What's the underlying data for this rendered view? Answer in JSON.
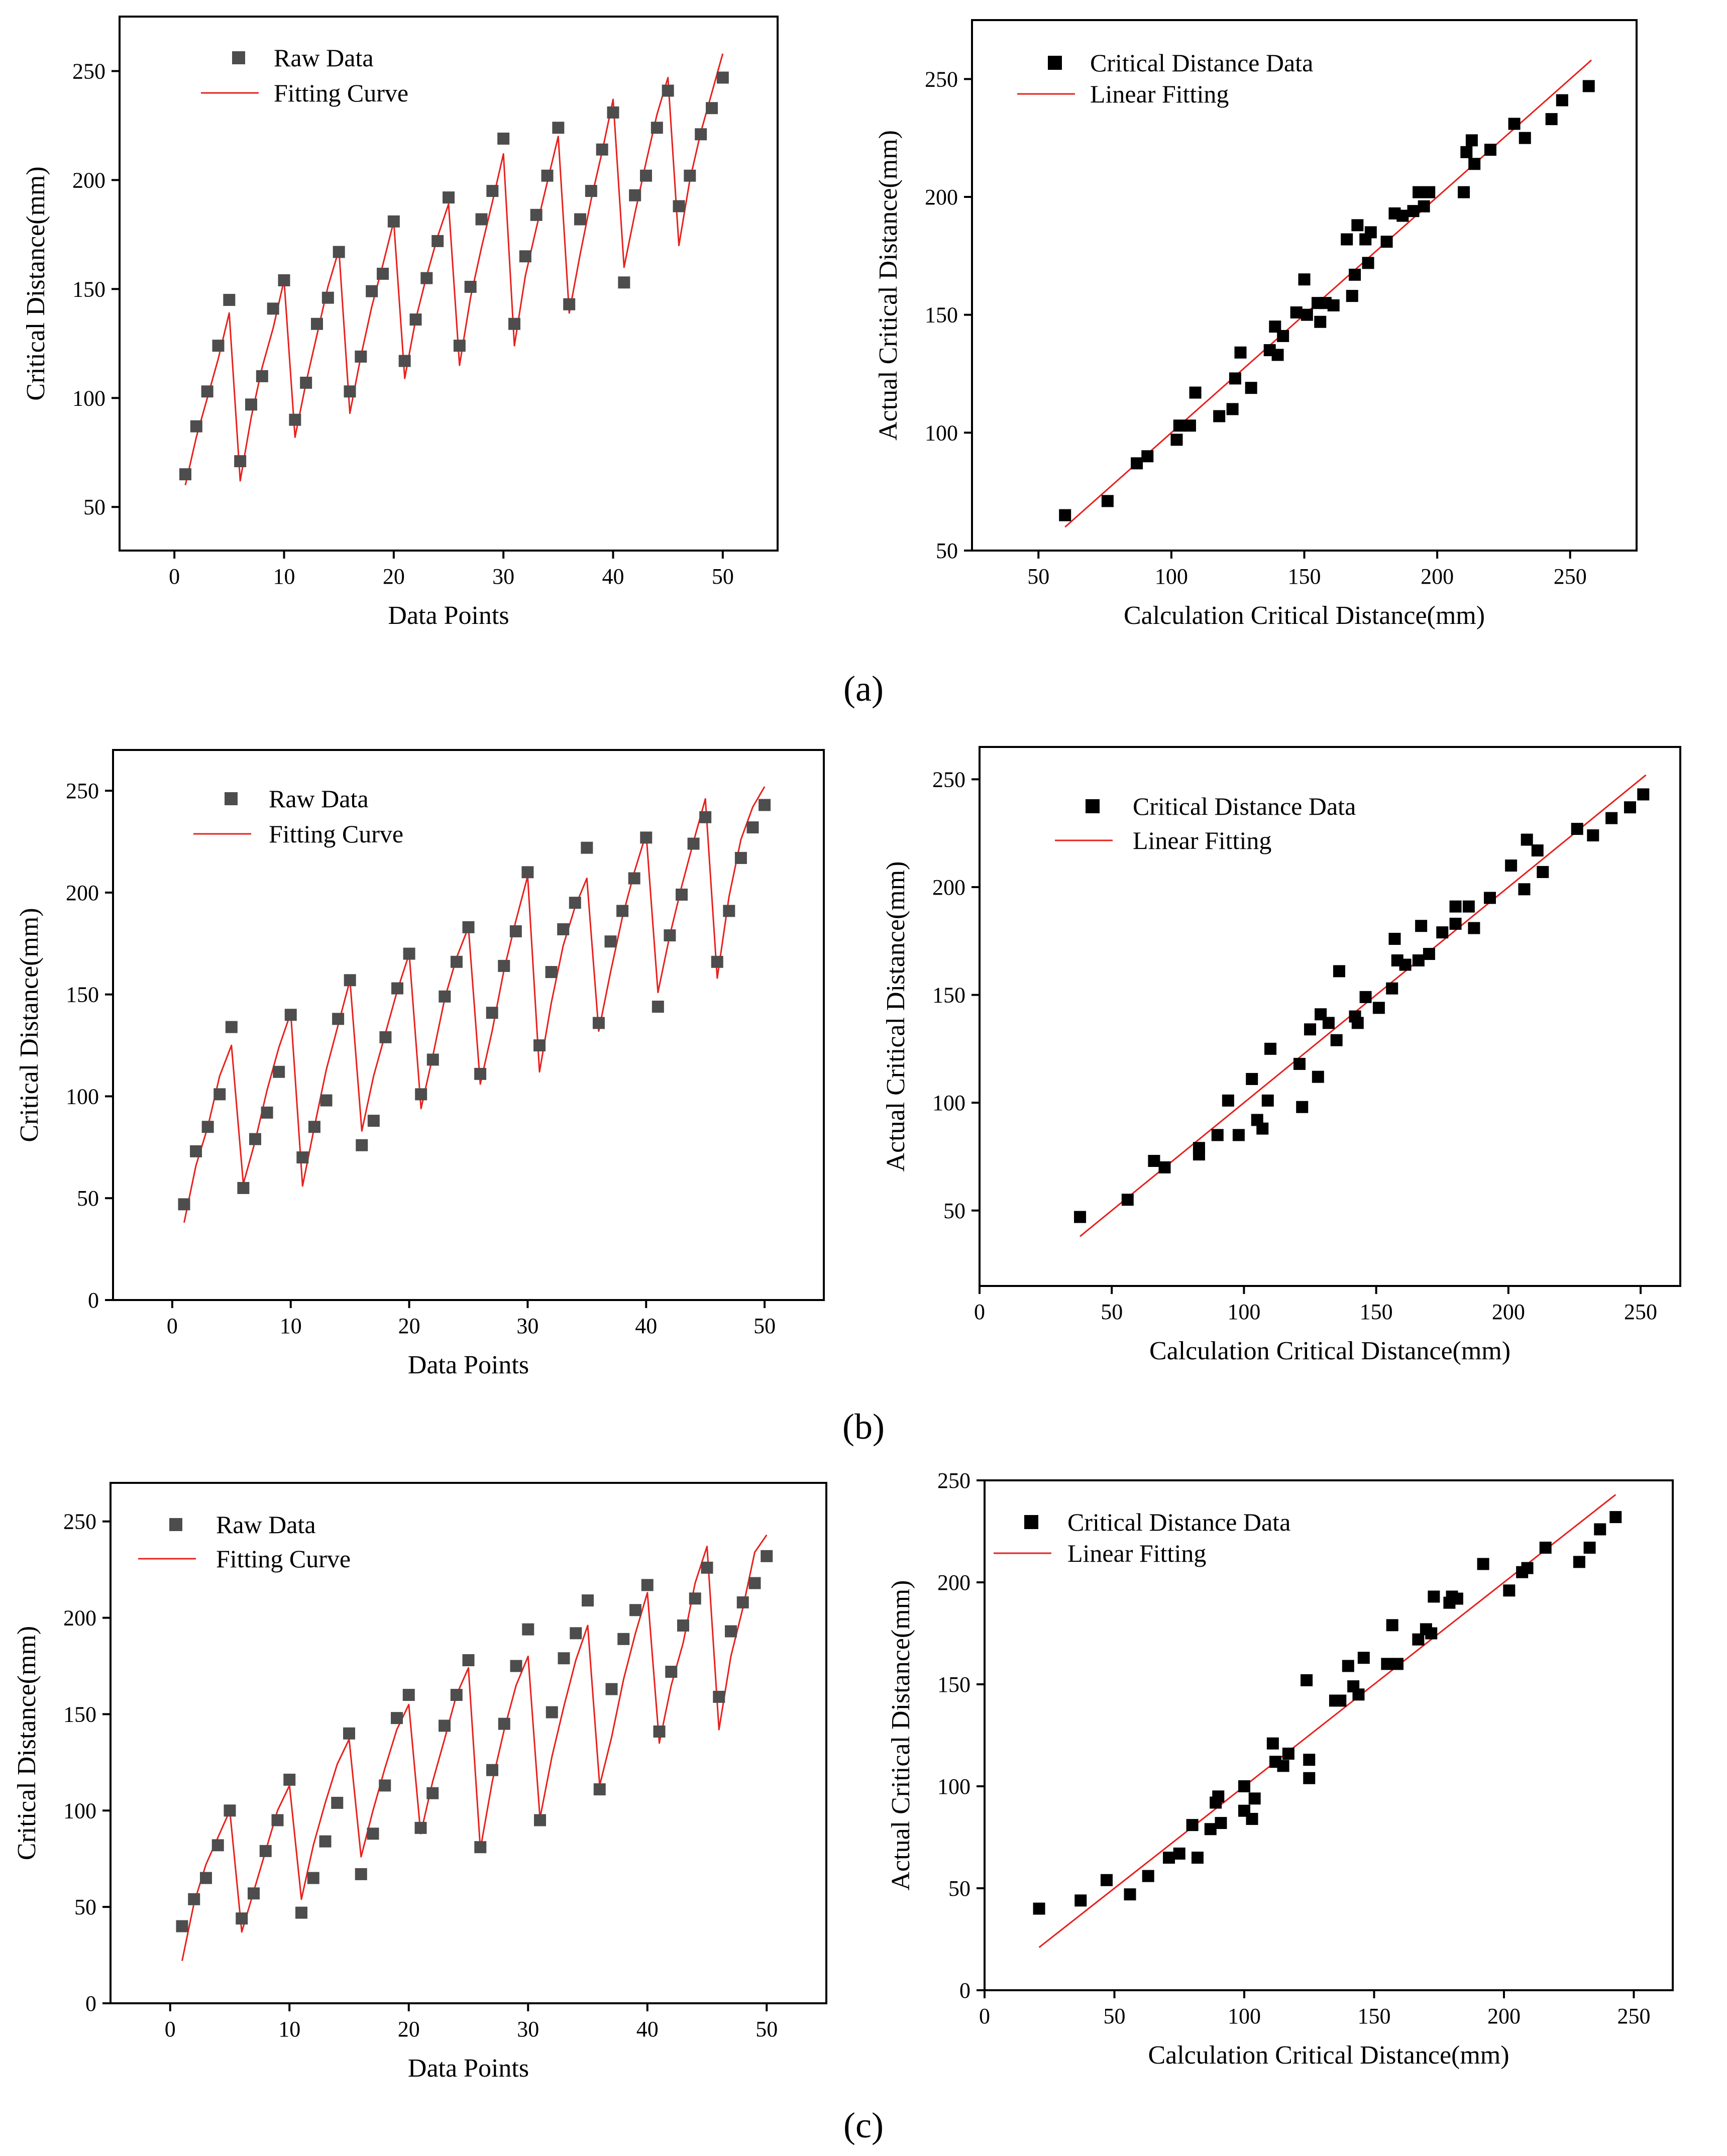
{
  "panel_labels": [
    "(a)",
    "(b)",
    "(c)"
  ],
  "colors": {
    "raw_marker": "#4d4d4d",
    "scatter_marker": "#000000",
    "fit_line": "#e8201c",
    "axis": "#000000"
  },
  "chart_data": [
    {
      "id": "a-left",
      "type": "line",
      "xlabel": "Data Points",
      "ylabel": "Critical Distance(mm)",
      "xlim": [
        -5,
        55
      ],
      "ylim": [
        30,
        275
      ],
      "xticks": [
        0,
        10,
        20,
        30,
        40,
        50
      ],
      "yticks": [
        50,
        100,
        150,
        200,
        250
      ],
      "legend": [
        "Raw Data",
        "Fitting Curve"
      ],
      "raw": [
        65,
        87,
        103,
        124,
        145,
        71,
        97,
        110,
        141,
        154,
        90,
        107,
        134,
        146,
        167,
        103,
        119,
        149,
        157,
        181,
        117,
        136,
        155,
        172,
        192,
        124,
        151,
        182,
        195,
        219,
        134,
        165,
        184,
        202,
        224,
        143,
        182,
        195,
        214,
        231,
        153,
        193,
        202,
        224,
        241,
        188,
        202,
        221,
        233,
        247
      ],
      "fit": [
        60,
        82,
        100,
        118,
        139,
        62,
        91,
        114,
        132,
        154,
        82,
        107,
        129,
        151,
        168,
        93,
        119,
        142,
        161,
        181,
        109,
        136,
        156,
        174,
        189,
        115,
        146,
        169,
        190,
        212,
        124,
        156,
        178,
        199,
        220,
        139,
        166,
        191,
        213,
        237,
        160,
        185,
        208,
        230,
        247,
        170,
        200,
        222,
        240,
        258
      ]
    },
    {
      "id": "a-right",
      "type": "scatter",
      "xlabel": "Calculation Critical Distance(mm)",
      "ylabel": "Actual Critical Distance(mm)",
      "xlim": [
        25,
        275
      ],
      "ylim": [
        50,
        275
      ],
      "xticks": [
        50,
        100,
        150,
        200,
        250
      ],
      "yticks": [
        50,
        100,
        150,
        200,
        250
      ],
      "legend": [
        "Critical Distance Data",
        "Linear Fitting"
      ],
      "points": [
        [
          60,
          65
        ],
        [
          76,
          71
        ],
        [
          87,
          87
        ],
        [
          91,
          90
        ],
        [
          102,
          97
        ],
        [
          103,
          103
        ],
        [
          107,
          103
        ],
        [
          109,
          117
        ],
        [
          118,
          107
        ],
        [
          123,
          110
        ],
        [
          124,
          123
        ],
        [
          126,
          134
        ],
        [
          130,
          119
        ],
        [
          137,
          135
        ],
        [
          139,
          145
        ],
        [
          140,
          133
        ],
        [
          142,
          141
        ],
        [
          147,
          151
        ],
        [
          150,
          165
        ],
        [
          151,
          150
        ],
        [
          155,
          155
        ],
        [
          156,
          147
        ],
        [
          158,
          155
        ],
        [
          161,
          154
        ],
        [
          166,
          182
        ],
        [
          168,
          158
        ],
        [
          169,
          167
        ],
        [
          170,
          188
        ],
        [
          173,
          182
        ],
        [
          174,
          172
        ],
        [
          175,
          185
        ],
        [
          181,
          181
        ],
        [
          184,
          193
        ],
        [
          187,
          192
        ],
        [
          191,
          194
        ],
        [
          193,
          202
        ],
        [
          195,
          196
        ],
        [
          197,
          202
        ],
        [
          210,
          202
        ],
        [
          211,
          219
        ],
        [
          213,
          224
        ],
        [
          214,
          214
        ],
        [
          220,
          220
        ],
        [
          229,
          231
        ],
        [
          233,
          225
        ],
        [
          243,
          233
        ],
        [
          247,
          241
        ],
        [
          257,
          247
        ]
      ],
      "fit_line": [
        [
          60,
          60
        ],
        [
          258,
          258
        ]
      ]
    },
    {
      "id": "b-left",
      "type": "line",
      "xlabel": "Data Points",
      "ylabel": "Critical Distance(mm)",
      "xlim": [
        -5,
        55
      ],
      "ylim": [
        0,
        270
      ],
      "xticks": [
        0,
        10,
        20,
        30,
        40,
        50
      ],
      "yticks": [
        0,
        50,
        100,
        150,
        200,
        250
      ],
      "legend": [
        "Raw Data",
        "Fitting Curve"
      ],
      "raw": [
        47,
        73,
        85,
        101,
        134,
        55,
        79,
        92,
        112,
        140,
        70,
        85,
        98,
        138,
        157,
        76,
        88,
        129,
        153,
        170,
        101,
        118,
        149,
        166,
        183,
        111,
        141,
        164,
        181,
        210,
        125,
        161,
        182,
        195,
        222,
        136,
        176,
        191,
        207,
        227,
        144,
        179,
        199,
        224,
        237,
        166,
        191,
        217,
        232,
        243
      ],
      "fit": [
        38,
        66,
        85,
        110,
        125,
        57,
        78,
        103,
        124,
        141,
        56,
        85,
        113,
        135,
        157,
        83,
        110,
        131,
        152,
        170,
        94,
        120,
        148,
        168,
        183,
        106,
        132,
        162,
        186,
        208,
        112,
        146,
        174,
        193,
        207,
        132,
        161,
        188,
        210,
        229,
        151,
        179,
        203,
        225,
        246,
        158,
        198,
        226,
        242,
        252
      ]
    },
    {
      "id": "b-right",
      "type": "scatter",
      "xlabel": "Calculation Critical Distance(mm)",
      "ylabel": "Actual Critical Distance(mm)",
      "xlim": [
        0,
        265
      ],
      "ylim": [
        15,
        265
      ],
      "xticks": [
        0,
        50,
        100,
        150,
        200,
        250
      ],
      "yticks": [
        50,
        100,
        150,
        200,
        250
      ],
      "legend": [
        "Critical Distance Data",
        "Linear Fitting"
      ],
      "points": [
        [
          38,
          47
        ],
        [
          56,
          55
        ],
        [
          66,
          73
        ],
        [
          70,
          70
        ],
        [
          83,
          79
        ],
        [
          83,
          76
        ],
        [
          90,
          85
        ],
        [
          94,
          101
        ],
        [
          98,
          85
        ],
        [
          103,
          111
        ],
        [
          105,
          92
        ],
        [
          107,
          88
        ],
        [
          109,
          101
        ],
        [
          110,
          125
        ],
        [
          121,
          118
        ],
        [
          122,
          98
        ],
        [
          125,
          134
        ],
        [
          128,
          112
        ],
        [
          129,
          141
        ],
        [
          132,
          137
        ],
        [
          135,
          129
        ],
        [
          136,
          161
        ],
        [
          142,
          140
        ],
        [
          143,
          137
        ],
        [
          146,
          149
        ],
        [
          151,
          144
        ],
        [
          156,
          153
        ],
        [
          157,
          176
        ],
        [
          158,
          166
        ],
        [
          161,
          164
        ],
        [
          166,
          166
        ],
        [
          167,
          182
        ],
        [
          170,
          169
        ],
        [
          175,
          179
        ],
        [
          180,
          183
        ],
        [
          180,
          191
        ],
        [
          185,
          191
        ],
        [
          187,
          181
        ],
        [
          193,
          195
        ],
        [
          201,
          210
        ],
        [
          206,
          199
        ],
        [
          207,
          222
        ],
        [
          211,
          217
        ],
        [
          213,
          207
        ],
        [
          226,
          227
        ],
        [
          232,
          224
        ],
        [
          239,
          232
        ],
        [
          246,
          237
        ],
        [
          251,
          243
        ]
      ],
      "fit_line": [
        [
          38,
          38
        ],
        [
          252,
          252
        ]
      ]
    },
    {
      "id": "c-left",
      "type": "line",
      "xlabel": "Data Points",
      "ylabel": "Critical Distance(mm)",
      "xlim": [
        -5,
        55
      ],
      "ylim": [
        0,
        270
      ],
      "xticks": [
        0,
        10,
        20,
        30,
        40,
        50
      ],
      "yticks": [
        0,
        50,
        100,
        150,
        200,
        250
      ],
      "legend": [
        "Raw Data",
        "Fitting Curve"
      ],
      "raw": [
        40,
        54,
        65,
        82,
        100,
        44,
        57,
        79,
        95,
        116,
        47,
        65,
        84,
        104,
        140,
        67,
        88,
        113,
        148,
        160,
        91,
        109,
        144,
        160,
        178,
        81,
        121,
        145,
        175,
        194,
        95,
        151,
        179,
        192,
        209,
        111,
        163,
        189,
        204,
        217,
        141,
        172,
        196,
        210,
        226,
        159,
        193,
        208,
        218,
        232
      ],
      "fit": [
        22,
        52,
        72,
        86,
        100,
        37,
        58,
        79,
        100,
        113,
        54,
        82,
        104,
        124,
        137,
        76,
        100,
        122,
        142,
        155,
        88,
        115,
        137,
        160,
        174,
        80,
        115,
        142,
        165,
        180,
        96,
        128,
        154,
        178,
        196,
        113,
        138,
        168,
        192,
        213,
        135,
        165,
        187,
        218,
        237,
        142,
        180,
        205,
        234,
        243
      ]
    },
    {
      "id": "c-right",
      "type": "scatter",
      "xlabel": "Calculation Critical Distance(mm)",
      "ylabel": "Actual Critical Distance(mm)",
      "xlim": [
        0,
        265
      ],
      "ylim": [
        0,
        250
      ],
      "xticks": [
        0,
        50,
        100,
        150,
        200,
        250
      ],
      "yticks": [
        0,
        50,
        100,
        150,
        200,
        250
      ],
      "legend": [
        "Critical Distance Data",
        "Linear Fitting"
      ],
      "points": [
        [
          21,
          40
        ],
        [
          37,
          44
        ],
        [
          47,
          54
        ],
        [
          56,
          47
        ],
        [
          63,
          56
        ],
        [
          71,
          65
        ],
        [
          75,
          67
        ],
        [
          80,
          81
        ],
        [
          82,
          65
        ],
        [
          87,
          79
        ],
        [
          89,
          92
        ],
        [
          90,
          95
        ],
        [
          91,
          82
        ],
        [
          100,
          88
        ],
        [
          100,
          100
        ],
        [
          103,
          84
        ],
        [
          104,
          94
        ],
        [
          111,
          121
        ],
        [
          112,
          112
        ],
        [
          115,
          110
        ],
        [
          117,
          116
        ],
        [
          124,
          152
        ],
        [
          125,
          104
        ],
        [
          125,
          113
        ],
        [
          135,
          142
        ],
        [
          137,
          142
        ],
        [
          140,
          159
        ],
        [
          142,
          149
        ],
        [
          144,
          145
        ],
        [
          146,
          163
        ],
        [
          155,
          160
        ],
        [
          157,
          179
        ],
        [
          159,
          160
        ],
        [
          167,
          172
        ],
        [
          170,
          177
        ],
        [
          172,
          175
        ],
        [
          173,
          193
        ],
        [
          179,
          190
        ],
        [
          180,
          193
        ],
        [
          182,
          192
        ],
        [
          192,
          209
        ],
        [
          202,
          196
        ],
        [
          207,
          205
        ],
        [
          209,
          207
        ],
        [
          216,
          217
        ],
        [
          229,
          210
        ],
        [
          233,
          217
        ],
        [
          237,
          226
        ],
        [
          243,
          232
        ]
      ],
      "fit_line": [
        [
          21,
          21
        ],
        [
          243,
          243
        ]
      ]
    }
  ]
}
